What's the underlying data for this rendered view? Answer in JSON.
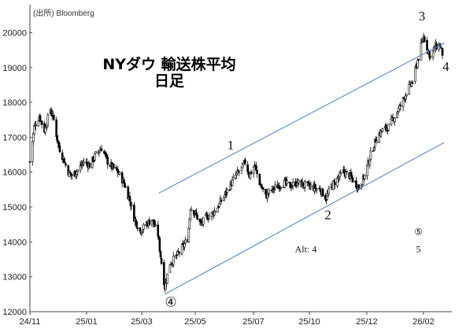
{
  "chart_data": {
    "type": "candlestick",
    "source": "(出所) Bloomberg",
    "title_line1": "NYダウ 輸送株平均",
    "title_line2": "日足",
    "ylim": [
      12000,
      20800
    ],
    "y_ticks": [
      12000,
      13000,
      14000,
      15000,
      16000,
      17000,
      18000,
      19000,
      20000
    ],
    "y_tick_labels": [
      "12000",
      "13000",
      "14000",
      "15000",
      "16000",
      "17000",
      "18000",
      "19000",
      "20000"
    ],
    "x_tick_labels": [
      "24/11",
      "25/01",
      "25/03",
      "25/05",
      "25/07",
      "25/10",
      "25/12",
      "26/02"
    ],
    "price_path": [
      [
        "2024-11-01",
        16300
      ],
      [
        "2024-11-06",
        17300
      ],
      [
        "2024-11-12",
        17600
      ],
      [
        "2024-11-18",
        17200
      ],
      [
        "2024-11-25",
        17800
      ],
      [
        "2024-11-29",
        17500
      ],
      [
        "2024-12-04",
        16800
      ],
      [
        "2024-12-10",
        16400
      ],
      [
        "2024-12-16",
        16000
      ],
      [
        "2024-12-20",
        15900
      ],
      [
        "2024-12-27",
        16050
      ],
      [
        "2025-01-03",
        16300
      ],
      [
        "2025-01-10",
        16200
      ],
      [
        "2025-01-17",
        16500
      ],
      [
        "2025-01-24",
        16700
      ],
      [
        "2025-01-31",
        16300
      ],
      [
        "2025-02-05",
        16150
      ],
      [
        "2025-02-12",
        16000
      ],
      [
        "2025-02-19",
        15700
      ],
      [
        "2025-02-26",
        15200
      ],
      [
        "2025-03-03",
        14700
      ],
      [
        "2025-03-10",
        14300
      ],
      [
        "2025-03-17",
        14500
      ],
      [
        "2025-03-24",
        14650
      ],
      [
        "2025-03-31",
        14200
      ],
      [
        "2025-04-04",
        13400
      ],
      [
        "2025-04-08",
        12700
      ],
      [
        "2025-04-14",
        13400
      ],
      [
        "2025-04-22",
        13600
      ],
      [
        "2025-04-30",
        13900
      ],
      [
        "2025-05-05",
        14100
      ],
      [
        "2025-05-08",
        15000
      ],
      [
        "2025-05-14",
        14800
      ],
      [
        "2025-05-20",
        14500
      ],
      [
        "2025-05-26",
        14700
      ],
      [
        "2025-06-02",
        14800
      ],
      [
        "2025-06-09",
        15000
      ],
      [
        "2025-06-16",
        15300
      ],
      [
        "2025-06-23",
        15600
      ],
      [
        "2025-06-30",
        15900
      ],
      [
        "2025-07-07",
        16100
      ],
      [
        "2025-07-11",
        16300
      ],
      [
        "2025-07-16",
        15900
      ],
      [
        "2025-07-22",
        16200
      ],
      [
        "2025-07-28",
        15700
      ],
      [
        "2025-08-04",
        15300
      ],
      [
        "2025-08-11",
        15500
      ],
      [
        "2025-08-18",
        15600
      ],
      [
        "2025-08-25",
        15700
      ],
      [
        "2025-09-02",
        15600
      ],
      [
        "2025-09-09",
        15700
      ],
      [
        "2025-09-16",
        15650
      ],
      [
        "2025-09-23",
        15600
      ],
      [
        "2025-09-30",
        15550
      ],
      [
        "2025-10-07",
        15500
      ],
      [
        "2025-10-14",
        15250
      ],
      [
        "2025-10-20",
        15600
      ],
      [
        "2025-10-27",
        15800
      ],
      [
        "2025-11-03",
        16000
      ],
      [
        "2025-11-10",
        15900
      ],
      [
        "2025-11-17",
        15700
      ],
      [
        "2025-11-21",
        15550
      ],
      [
        "2025-11-28",
        15900
      ],
      [
        "2025-12-05",
        16500
      ],
      [
        "2025-12-12",
        17000
      ],
      [
        "2025-12-19",
        17200
      ],
      [
        "2025-12-26",
        17300
      ],
      [
        "2026-01-02",
        17600
      ],
      [
        "2026-01-09",
        17900
      ],
      [
        "2026-01-16",
        18300
      ],
      [
        "2026-01-23",
        18600
      ],
      [
        "2026-01-30",
        19300
      ],
      [
        "2026-02-05",
        19900
      ],
      [
        "2026-02-10",
        19500
      ],
      [
        "2026-02-13",
        19300
      ],
      [
        "2026-02-19",
        19600
      ],
      [
        "2026-02-24",
        19650
      ],
      [
        "2026-02-27",
        19400
      ]
    ],
    "channel_upper": [
      [
        "2025-04-01",
        15400
      ],
      [
        "2026-03-01",
        19700
      ]
    ],
    "channel_lower": [
      [
        "2025-04-08",
        12500
      ],
      [
        "2026-03-01",
        16850
      ]
    ],
    "wave_labels": [
      {
        "text": "1",
        "x": "2025-06-24",
        "y": 16650
      },
      {
        "text": "2",
        "x": "2025-10-16",
        "y": 14650
      },
      {
        "text": "3",
        "x": "2026-02-03",
        "y": 20350
      },
      {
        "text": "4",
        "x": "2026-03-03",
        "y": 18900
      },
      {
        "text": "④",
        "x": "2025-04-15",
        "y": 12150
      },
      {
        "text": "⑤",
        "x": "2026-01-30",
        "y": 14200
      },
      {
        "text": "5",
        "x": "2026-01-30",
        "y": 13700
      },
      {
        "text": "Alt: 4",
        "x": "2025-09-20",
        "y": 13700
      }
    ],
    "colors": {
      "candle": "#000000",
      "channel": "#4a7fc1",
      "grid": "#d0d0d0"
    }
  }
}
